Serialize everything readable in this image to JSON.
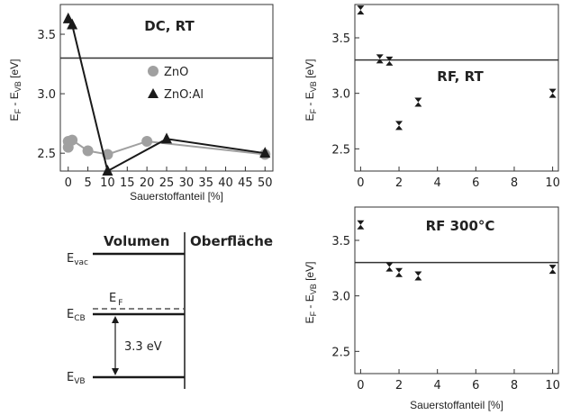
{
  "chart_data": [
    {
      "id": "dc",
      "type": "scatter",
      "title": "DC, RT",
      "xlabel": "Sauerstoffanteil [%]",
      "ylabel_main": "E",
      "ylabel_sub1": "F",
      "ylabel_mid": " - E",
      "ylabel_sub2": "VB",
      "ylabel_unit": " [eV]",
      "xlim": [
        -2,
        52
      ],
      "ylim": [
        2.35,
        3.75
      ],
      "xticks": [
        0,
        5,
        10,
        15,
        20,
        25,
        30,
        35,
        40,
        45,
        50
      ],
      "yticks": [
        2.5,
        3.0,
        3.5
      ],
      "hline": 3.3,
      "legend_position": "right",
      "series": [
        {
          "name": "ZnO",
          "marker": "circle",
          "color": "#a0a0a0",
          "x": [
            0,
            0,
            1,
            5,
            10,
            20,
            50
          ],
          "y": [
            2.55,
            2.6,
            2.61,
            2.52,
            2.49,
            2.6,
            2.49
          ]
        },
        {
          "name": "ZnO:Al",
          "marker": "triangle",
          "color": "#1a1a1a",
          "x": [
            0,
            1,
            10,
            25,
            50
          ],
          "y": [
            3.63,
            3.58,
            2.35,
            2.62,
            2.5
          ]
        }
      ]
    },
    {
      "id": "rfrt",
      "type": "scatter",
      "title": "RF, RT",
      "xlabel": "",
      "ylabel_main": "E",
      "ylabel_sub1": "F",
      "ylabel_mid": " - E",
      "ylabel_sub2": "VB",
      "ylabel_unit": " [eV]",
      "xlim": [
        -0.3,
        10.3
      ],
      "ylim": [
        2.3,
        3.8
      ],
      "xticks": [
        0,
        2,
        4,
        6,
        8,
        10
      ],
      "yticks": [
        2.5,
        3.0,
        3.5
      ],
      "hline": 3.3,
      "series": [
        {
          "name": "",
          "marker": "bowtie",
          "color": "#1a1a1a",
          "x": [
            0,
            1,
            1.5,
            2,
            3,
            10
          ],
          "y": [
            3.75,
            3.31,
            3.29,
            2.71,
            2.92,
            3.0
          ]
        }
      ]
    },
    {
      "id": "rf300",
      "type": "scatter",
      "title": "RF 300°C",
      "xlabel": "Sauerstoffanteil [%]",
      "ylabel_main": "E",
      "ylabel_sub1": "F",
      "ylabel_mid": " - E",
      "ylabel_sub2": "VB",
      "ylabel_unit": " [eV]",
      "xlim": [
        -0.3,
        10.3
      ],
      "ylim": [
        2.3,
        3.8
      ],
      "xticks": [
        0,
        2,
        4,
        6,
        8,
        10
      ],
      "yticks": [
        2.5,
        3.0,
        3.5
      ],
      "hline": 3.3,
      "series": [
        {
          "name": "",
          "marker": "bowtie",
          "color": "#1a1a1a",
          "x": [
            0,
            1.5,
            2,
            3,
            10
          ],
          "y": [
            3.64,
            3.26,
            3.21,
            3.18,
            3.24
          ]
        }
      ]
    }
  ],
  "diagram": {
    "head_left": "Volumen",
    "head_right": "Oberfläche",
    "levels": {
      "vac": {
        "main": "E",
        "sub": "vac"
      },
      "cb": {
        "main": "E",
        "sub": "CB"
      },
      "vb": {
        "main": "E",
        "sub": "VB"
      },
      "fermi": {
        "main": "E",
        "sub": "F"
      }
    },
    "gap_label": "3.3 eV"
  }
}
